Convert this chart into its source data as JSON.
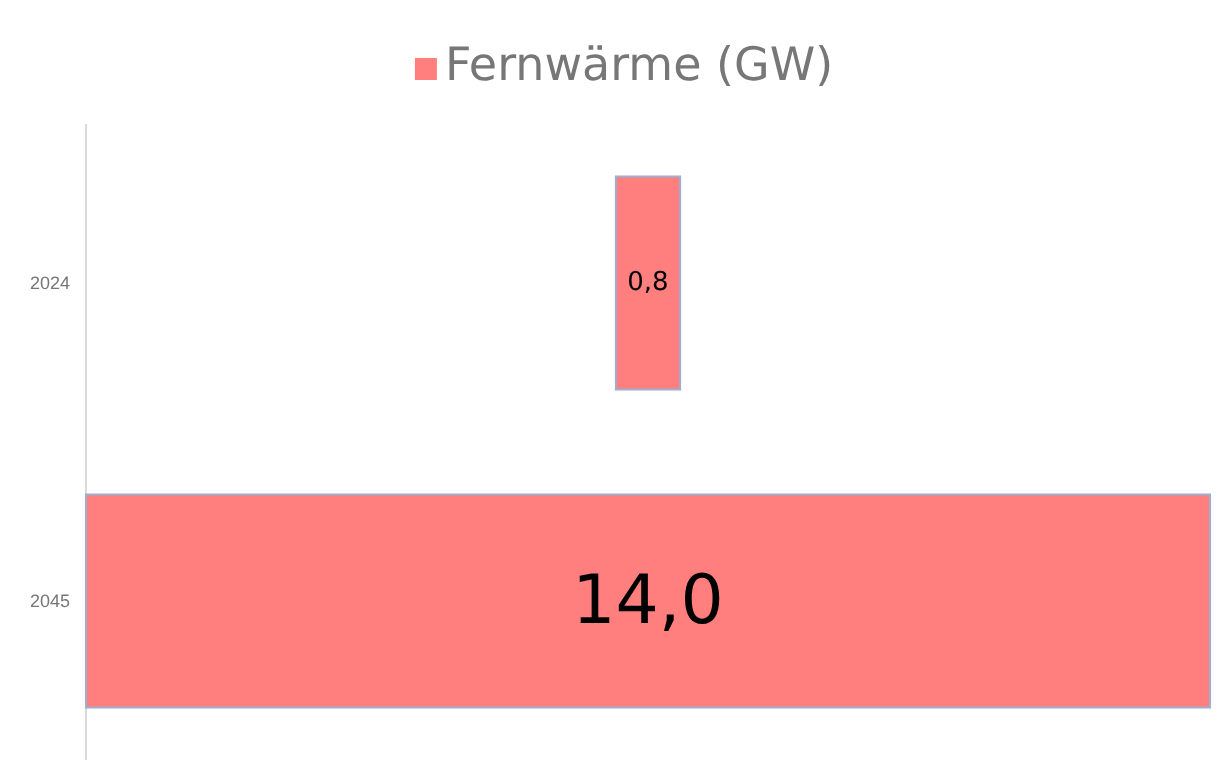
{
  "chart_data": {
    "type": "other",
    "categories": [
      "2024",
      "2045"
    ],
    "series": [
      {
        "name": "Fernwärme (GW)",
        "color": "#ff7f7f",
        "values": [
          0.8,
          14.0
        ],
        "value_labels": [
          "0,8",
          "14,0"
        ]
      }
    ],
    "legend": "top"
  }
}
